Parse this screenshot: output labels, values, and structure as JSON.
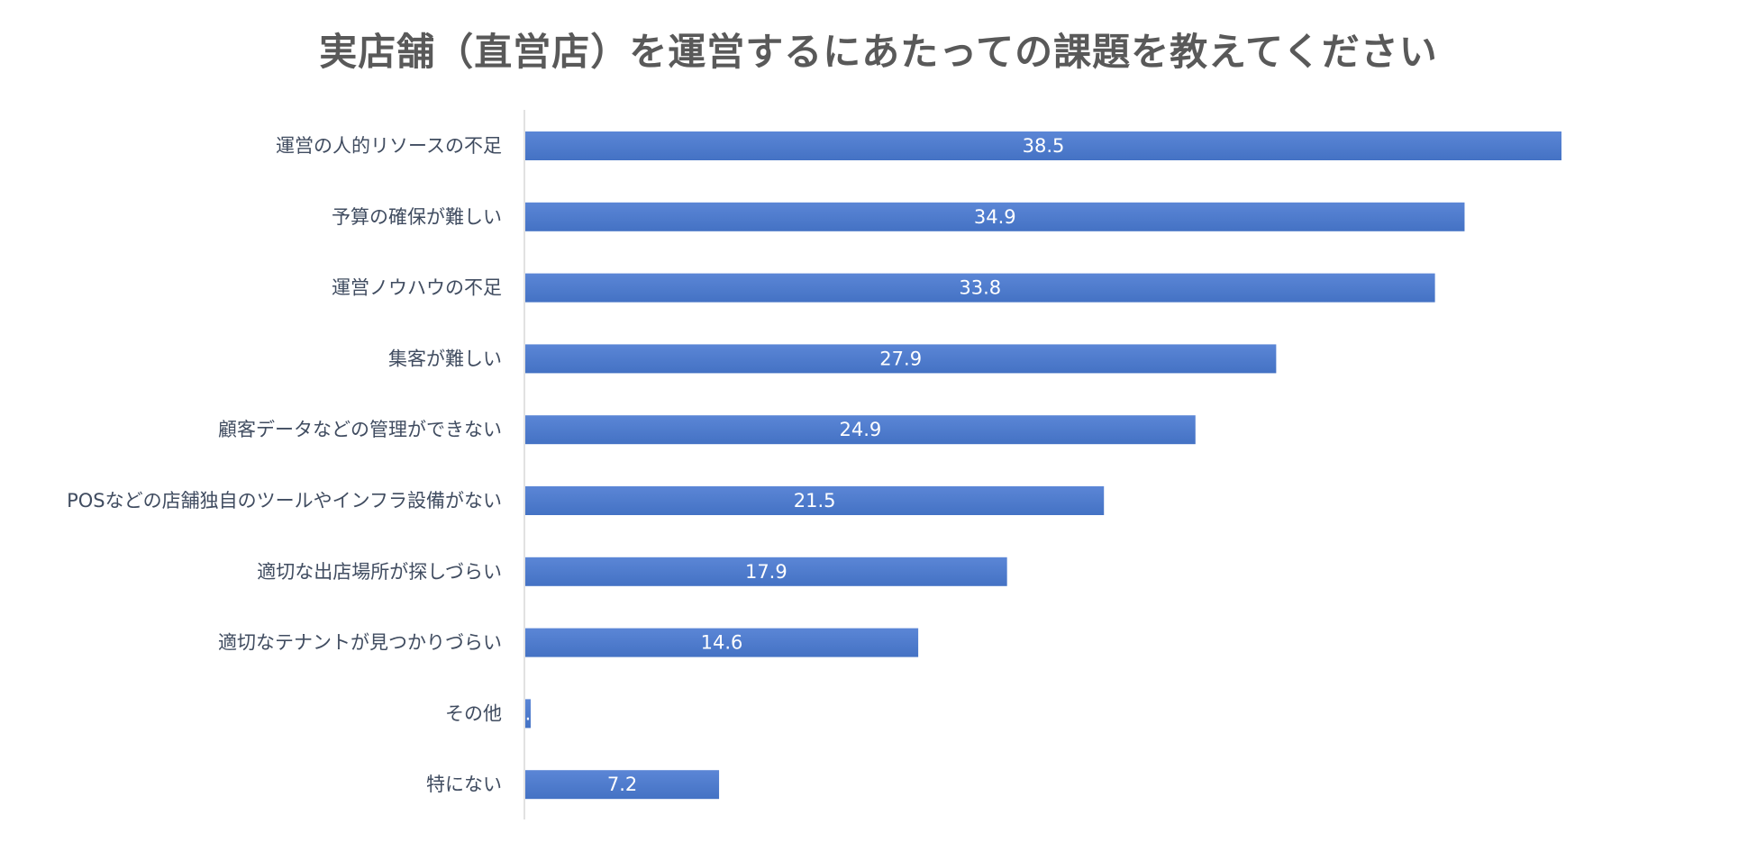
{
  "chart_data": {
    "type": "bar",
    "orientation": "horizontal",
    "title": "実店舗（直営店）を運営するにあたっての課題を教えてください",
    "categories": [
      "運営の人的リソースの不足",
      "予算の確保が難しい",
      "運営ノウハウの不足",
      "集客が難しい",
      "顧客データなどの管理ができない",
      "POSなどの店舗独自のツールやインフラ設備がない",
      "適切な出店場所が探しづらい",
      "適切なテナントが見つかりづらい",
      "その他",
      "特にない"
    ],
    "values": [
      38.5,
      34.9,
      33.8,
      27.9,
      24.9,
      21.5,
      17.9,
      14.6,
      0.2,
      7.2
    ],
    "value_labels": [
      "38.5",
      "34.9",
      "33.8",
      "27.9",
      "24.9",
      "21.5",
      "17.9",
      "14.6",
      ".",
      "7.2"
    ],
    "xlim": [
      0,
      40
    ],
    "bar_color": "#4472c4",
    "bar_color_light": "#5b86d6",
    "axis_color": "#d9d9d9",
    "grid": false,
    "legend": "none"
  }
}
